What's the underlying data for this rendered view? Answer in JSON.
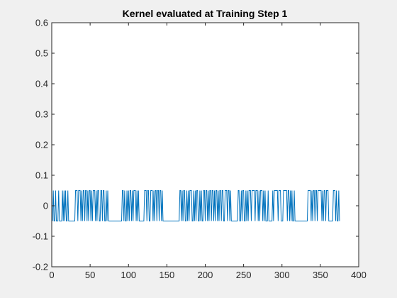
{
  "chart_data": {
    "type": "line",
    "title": "Kernel evaluated at Training Step 1",
    "xlabel": "",
    "ylabel": "",
    "xlim": [
      0,
      400
    ],
    "ylim": [
      -0.2,
      0.6
    ],
    "x_ticks": [
      0,
      50,
      100,
      150,
      200,
      250,
      300,
      350,
      400
    ],
    "y_ticks": [
      -0.2,
      -0.1,
      0,
      0.1,
      0.2,
      0.3,
      0.4,
      0.5,
      0.6
    ],
    "x_tick_labels": [
      "0",
      "50",
      "100",
      "150",
      "200",
      "250",
      "300",
      "350",
      "400"
    ],
    "y_tick_labels": [
      "-0.2",
      "-0.1",
      "0",
      "0.1",
      "0.2",
      "0.3",
      "0.4",
      "0.5",
      "0.6"
    ],
    "grid": false,
    "series": [
      {
        "color": "#0072bd",
        "x_start": 1,
        "x_step": 1,
        "values": [
          -0.05,
          0.05,
          -0.05,
          -0.05,
          0.05,
          -0.05,
          -0.05,
          -0.05,
          0.05,
          -0.05,
          -0.05,
          -0.05,
          -0.05,
          0.05,
          -0.05,
          0.05,
          -0.05,
          0.05,
          -0.05,
          -0.05,
          0.05,
          -0.05,
          -0.05,
          -0.05,
          -0.05,
          -0.05,
          -0.05,
          -0.05,
          -0.05,
          -0.05,
          0.05,
          0.05,
          0.05,
          -0.05,
          0.05,
          0.05,
          0.05,
          -0.05,
          0.05,
          -0.05,
          0.05,
          0.05,
          -0.05,
          0.05,
          0.05,
          -0.05,
          0.05,
          -0.05,
          0.05,
          0.05,
          -0.05,
          0.05,
          -0.05,
          0.05,
          0.05,
          0.05,
          -0.05,
          0.05,
          -0.05,
          0.05,
          0.05,
          -0.05,
          -0.05,
          0.05,
          0.05,
          -0.05,
          0.05,
          0.05,
          -0.05,
          -0.05,
          0.05,
          -0.05,
          0.05,
          -0.05,
          -0.05,
          -0.05,
          -0.05,
          -0.05,
          -0.05,
          -0.05,
          -0.05,
          -0.05,
          -0.05,
          -0.05,
          -0.05,
          -0.05,
          -0.05,
          -0.05,
          -0.05,
          -0.05,
          -0.05,
          0.05,
          0.05,
          -0.05,
          0.05,
          -0.05,
          -0.05,
          0.05,
          -0.05,
          0.05,
          -0.05,
          0.05,
          0.05,
          -0.05,
          0.05,
          -0.05,
          0.05,
          0.05,
          0.05,
          -0.05,
          0.05,
          -0.05,
          0.05,
          -0.05,
          -0.05,
          -0.05,
          -0.05,
          -0.05,
          -0.05,
          -0.05,
          0.05,
          0.05,
          0.05,
          -0.05,
          0.05,
          0.05,
          -0.05,
          -0.05,
          0.05,
          0.05,
          0.05,
          -0.05,
          0.05,
          -0.05,
          0.05,
          0.05,
          -0.05,
          0.05,
          0.05,
          -0.05,
          0.05,
          0.05,
          -0.05,
          0.05,
          -0.05,
          -0.05,
          -0.05,
          -0.05,
          -0.05,
          -0.05,
          -0.05,
          -0.05,
          -0.05,
          -0.05,
          -0.05,
          -0.05,
          -0.05,
          -0.05,
          -0.05,
          -0.05,
          -0.05,
          -0.05,
          -0.05,
          -0.05,
          -0.05,
          -0.05,
          0.05,
          0.05,
          -0.05,
          0.05,
          -0.05,
          0.05,
          0.05,
          -0.05,
          -0.05,
          0.05,
          -0.05,
          0.05,
          -0.05,
          0.05,
          0.05,
          0.05,
          -0.05,
          -0.05,
          0.05,
          -0.05,
          0.05,
          -0.05,
          0.05,
          0.05,
          -0.05,
          -0.05,
          0.05,
          -0.05,
          0.05,
          -0.05,
          -0.05,
          0.05,
          0.05,
          -0.05,
          0.05,
          0.05,
          -0.05,
          0.05,
          -0.05,
          0.05,
          0.05,
          -0.05,
          0.05,
          0.05,
          -0.05,
          0.05,
          -0.05,
          0.05,
          0.05,
          -0.05,
          0.05,
          -0.05,
          0.05,
          0.05,
          -0.05,
          0.05,
          0.05,
          -0.05,
          -0.05,
          0.05,
          0.05,
          0.05,
          -0.05,
          0.05,
          0.05,
          -0.05,
          0.05,
          -0.05,
          -0.05,
          -0.05,
          -0.05,
          -0.05,
          -0.05,
          -0.05,
          -0.05,
          -0.05,
          0.05,
          0.05,
          -0.05,
          -0.05,
          0.05,
          -0.05,
          0.05,
          0.05,
          -0.05,
          -0.05,
          0.05,
          -0.05,
          0.05,
          -0.05,
          0.05,
          0.05,
          0.05,
          -0.05,
          0.05,
          0.05,
          0.05,
          0.05,
          -0.05,
          0.05,
          0.05,
          0.05,
          -0.05,
          0.05,
          -0.05,
          0.05,
          0.05,
          0.05,
          -0.05,
          0.05,
          -0.05,
          0.05,
          -0.05,
          -0.05,
          -0.05,
          0.05,
          -0.05,
          -0.05,
          -0.05,
          -0.05,
          -0.05,
          0.05,
          -0.05,
          0.05,
          0.05,
          0.05,
          0.05,
          0.05,
          -0.05,
          0.05,
          0.05,
          0.05,
          -0.05,
          -0.05,
          -0.05,
          0.05,
          0.05,
          0.05,
          0.05,
          0.05,
          -0.05,
          0.05,
          0.05,
          -0.05,
          0.05,
          -0.05,
          0.05,
          -0.05,
          -0.05,
          0.05,
          -0.05,
          -0.05,
          -0.05,
          -0.05,
          -0.05,
          -0.05,
          -0.05,
          -0.05,
          -0.05,
          -0.05,
          -0.05,
          -0.05,
          -0.05,
          -0.05,
          -0.05,
          -0.05,
          -0.05,
          0.05,
          0.05,
          0.05,
          0.05,
          -0.05,
          0.05,
          -0.05,
          0.05,
          0.05,
          -0.05,
          0.05,
          0.05,
          -0.05,
          0.05,
          0.05,
          0.05,
          0.05,
          0.05,
          -0.05,
          0.05,
          -0.05,
          0.05,
          0.05,
          -0.05,
          0.05,
          0.05,
          0.05,
          -0.05,
          -0.05,
          -0.05,
          -0.05,
          -0.05,
          -0.05,
          0.05,
          0.05,
          0.05,
          -0.05,
          0.05,
          -0.05,
          -0.05,
          0.05,
          -0.05
        ]
      }
    ]
  }
}
